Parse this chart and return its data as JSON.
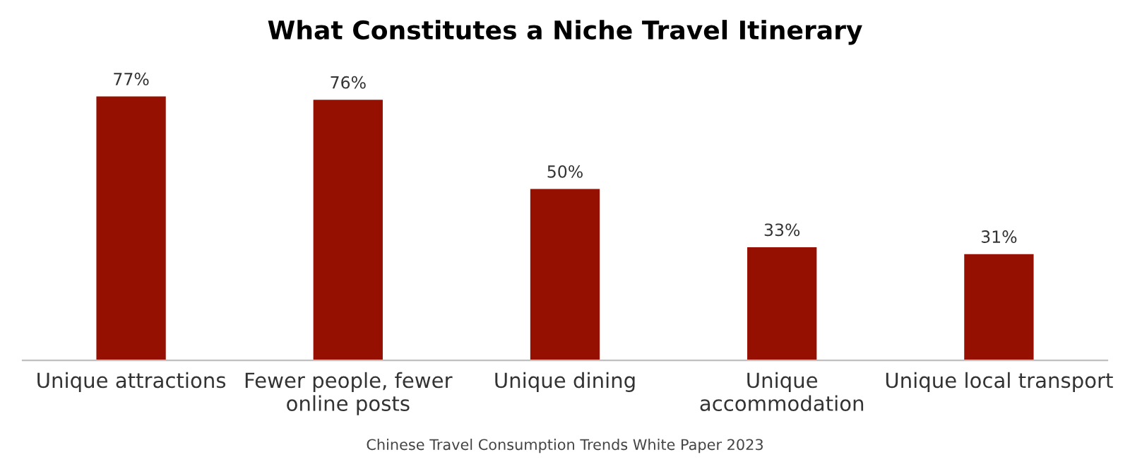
{
  "chart_data": {
    "type": "bar",
    "title": "What Constitutes a Niche Travel Itinerary",
    "categories": [
      "Unique attractions",
      "Fewer people, fewer\nonline posts",
      "Unique dining",
      "Unique\naccommodation",
      "Unique local transport"
    ],
    "values": [
      77,
      76,
      50,
      33,
      31
    ],
    "value_labels": [
      "77%",
      "76%",
      "50%",
      "33%",
      "31%"
    ],
    "color": "#951000",
    "grid": false,
    "legend": false,
    "annotations": [
      "Chinese Travel Consumption Trends White Paper 2023"
    ]
  }
}
